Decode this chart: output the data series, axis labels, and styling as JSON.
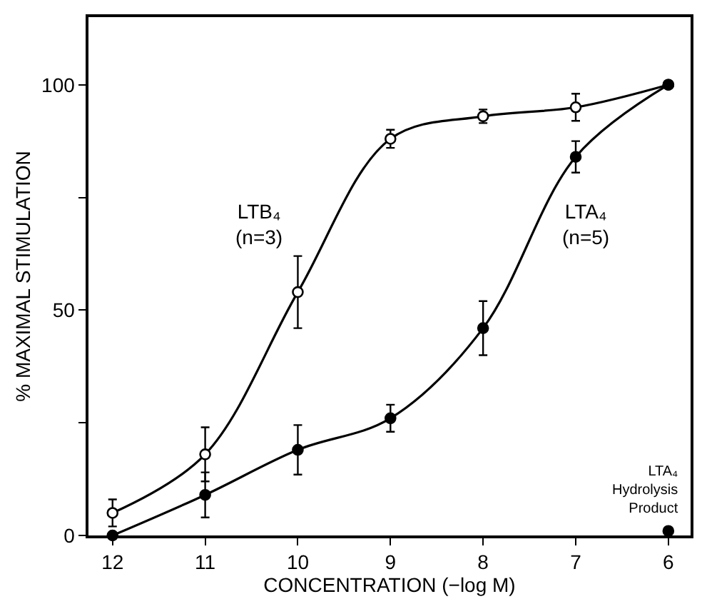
{
  "chart_data": {
    "type": "line",
    "xlabel": "CONCENTRATION (−log M)",
    "ylabel": "% MAXIMAL STIMULATION",
    "x": [
      12,
      11,
      10,
      9,
      8,
      7,
      6
    ],
    "series": [
      {
        "name": "LTB₄\n(n=3)",
        "color": "#000000",
        "colors": [
          "#ffffff",
          "#ffffff",
          "#ffffff",
          "#ffffff",
          "#ffffff",
          "#ffffff",
          "#ffffff"
        ],
        "values": [
          5,
          18,
          54,
          88,
          93,
          95,
          100
        ],
        "errors": [
          3,
          6,
          8,
          2,
          1.5,
          3,
          null
        ]
      },
      {
        "name": "LTA₄\n(n=5)",
        "color": "#000000",
        "values": [
          0,
          9,
          19,
          26,
          46,
          84,
          100
        ],
        "errors": [
          null,
          5,
          5.5,
          3,
          6,
          3.5,
          null
        ]
      },
      {
        "name": "LTA₄\nHydrolysis\nProduct",
        "type": "scatter",
        "color": "#000000",
        "x": [
          6
        ],
        "values": [
          1
        ]
      }
    ],
    "xlim": [
      12.26,
      5.76
    ],
    "xticks": [
      12,
      11,
      10,
      9,
      8,
      7,
      6
    ],
    "ylim": [
      0,
      115
    ],
    "yticks": [
      0,
      {
        "value": 25,
        "label": null
      },
      50,
      {
        "value": 75,
        "label": null
      },
      100
    ],
    "marker": "circle",
    "line_style": "solid"
  }
}
